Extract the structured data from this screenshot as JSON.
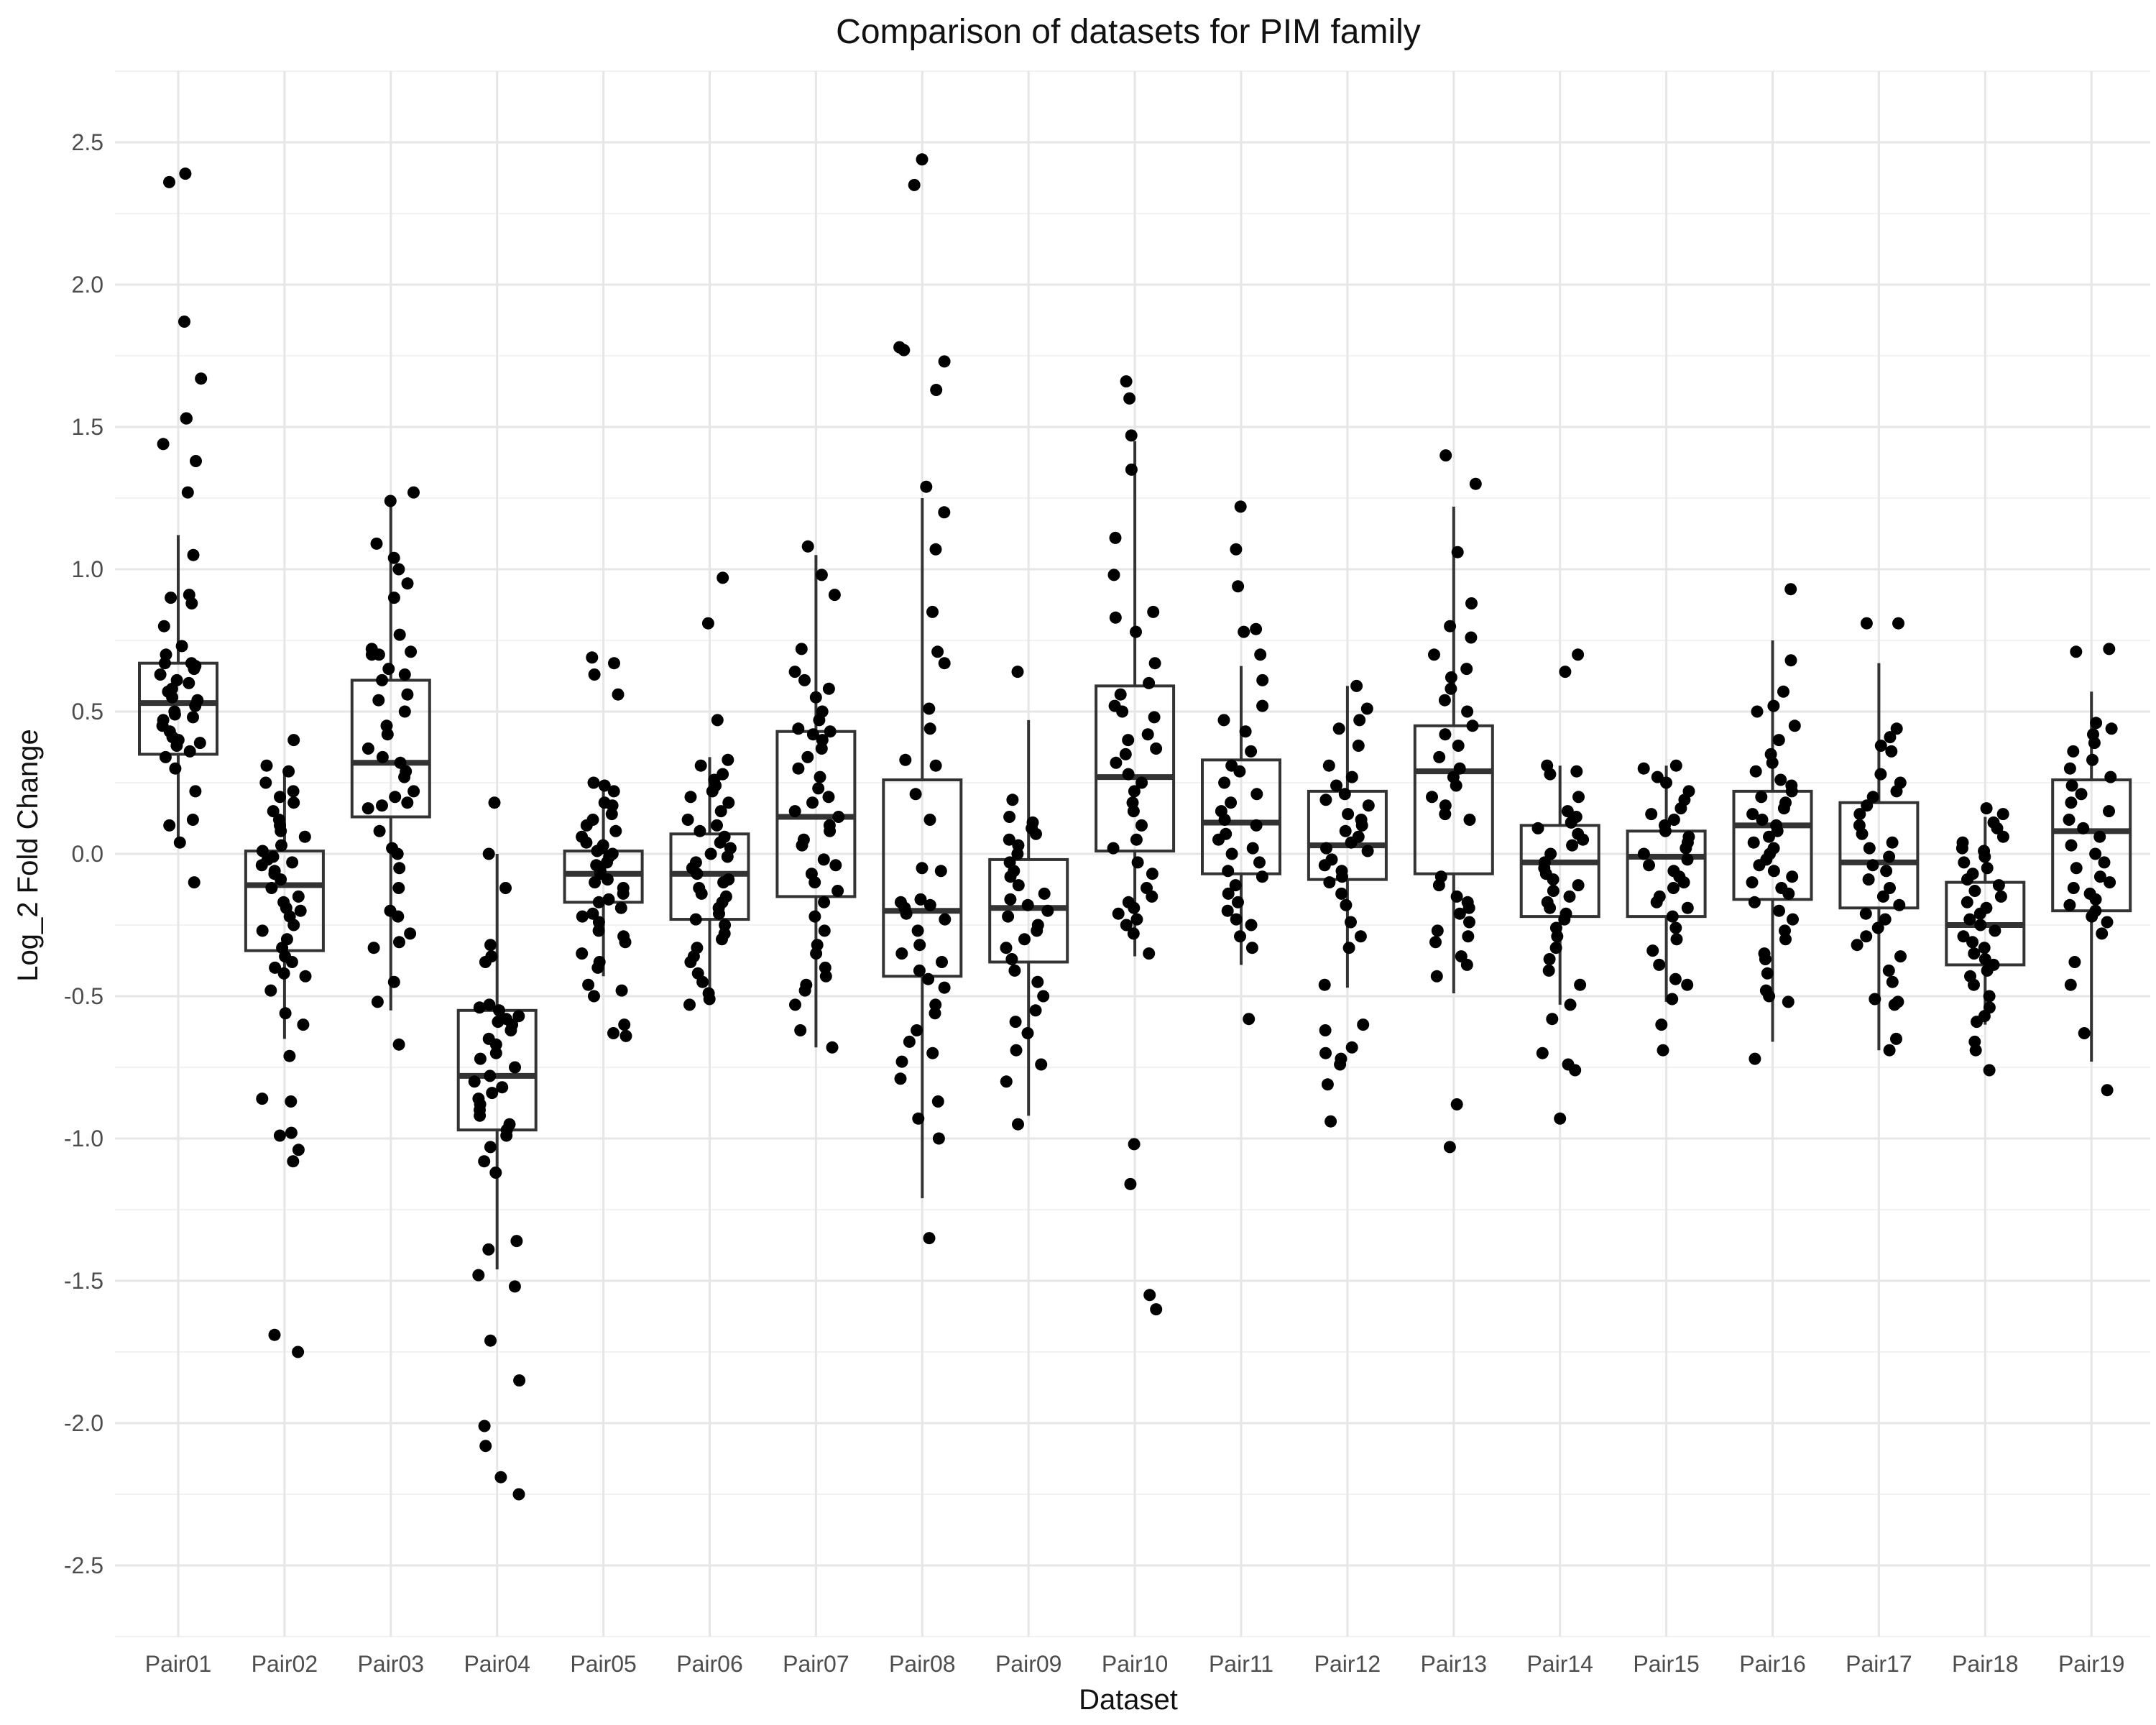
{
  "chart_data": {
    "type": "box",
    "title": "Comparison of datasets for PIM family",
    "xlabel": "Dataset",
    "ylabel": "Log_2 Fold Change",
    "ylim": [
      -2.75,
      2.75
    ],
    "yticks": [
      "-2.5",
      "-2.0",
      "-1.5",
      "-1.0",
      "-0.5",
      "0.0",
      "0.5",
      "1.0",
      "1.5",
      "2.0",
      "2.5"
    ],
    "ytick_values": [
      -2.5,
      -2.0,
      -1.5,
      -1.0,
      -0.5,
      0.0,
      0.5,
      1.0,
      1.5,
      2.0,
      2.5
    ],
    "grid": true,
    "legend": "none",
    "colors": {
      "box": "#333333",
      "point": "#000000",
      "grid": "#e6e6e6"
    },
    "categories": [
      "Pair01",
      "Pair02",
      "Pair03",
      "Pair04",
      "Pair05",
      "Pair06",
      "Pair07",
      "Pair08",
      "Pair09",
      "Pair10",
      "Pair11",
      "Pair12",
      "Pair13",
      "Pair14",
      "Pair15",
      "Pair16",
      "Pair17",
      "Pair18",
      "Pair19"
    ],
    "boxes": [
      {
        "category": "Pair01",
        "q1": 0.35,
        "median": 0.53,
        "q3": 0.67,
        "whisker_low": 0.04,
        "whisker_high": 1.12
      },
      {
        "category": "Pair02",
        "q1": -0.34,
        "median": -0.11,
        "q3": 0.01,
        "whisker_low": -0.65,
        "whisker_high": 0.3
      },
      {
        "category": "Pair03",
        "q1": 0.13,
        "median": 0.32,
        "q3": 0.61,
        "whisker_low": -0.55,
        "whisker_high": 1.24
      },
      {
        "category": "Pair04",
        "q1": -0.97,
        "median": -0.78,
        "q3": -0.55,
        "whisker_low": -1.46,
        "whisker_high": 0.0
      },
      {
        "category": "Pair05",
        "q1": -0.17,
        "median": -0.07,
        "q3": 0.01,
        "whisker_low": -0.43,
        "whisker_high": 0.25
      },
      {
        "category": "Pair06",
        "q1": -0.23,
        "median": -0.07,
        "q3": 0.07,
        "whisker_low": -0.53,
        "whisker_high": 0.34
      },
      {
        "category": "Pair07",
        "q1": -0.15,
        "median": 0.13,
        "q3": 0.43,
        "whisker_low": -0.68,
        "whisker_high": 1.05
      },
      {
        "category": "Pair08",
        "q1": -0.43,
        "median": -0.2,
        "q3": 0.26,
        "whisker_low": -1.21,
        "whisker_high": 1.25
      },
      {
        "category": "Pair09",
        "q1": -0.38,
        "median": -0.19,
        "q3": -0.02,
        "whisker_low": -0.92,
        "whisker_high": 0.47
      },
      {
        "category": "Pair10",
        "q1": 0.01,
        "median": 0.27,
        "q3": 0.59,
        "whisker_low": -0.36,
        "whisker_high": 1.45
      },
      {
        "category": "Pair11",
        "q1": -0.07,
        "median": 0.11,
        "q3": 0.33,
        "whisker_low": -0.39,
        "whisker_high": 0.66
      },
      {
        "category": "Pair12",
        "q1": -0.09,
        "median": 0.03,
        "q3": 0.22,
        "whisker_low": -0.47,
        "whisker_high": 0.59
      },
      {
        "category": "Pair13",
        "q1": -0.07,
        "median": 0.29,
        "q3": 0.45,
        "whisker_low": -0.49,
        "whisker_high": 1.22
      },
      {
        "category": "Pair14",
        "q1": -0.22,
        "median": -0.03,
        "q3": 0.1,
        "whisker_low": -0.53,
        "whisker_high": 0.31
      },
      {
        "category": "Pair15",
        "q1": -0.22,
        "median": -0.01,
        "q3": 0.08,
        "whisker_low": -0.52,
        "whisker_high": 0.31
      },
      {
        "category": "Pair16",
        "q1": -0.16,
        "median": 0.1,
        "q3": 0.22,
        "whisker_low": -0.66,
        "whisker_high": 0.75
      },
      {
        "category": "Pair17",
        "q1": -0.19,
        "median": -0.03,
        "q3": 0.18,
        "whisker_low": -0.69,
        "whisker_high": 0.67
      },
      {
        "category": "Pair18",
        "q1": -0.39,
        "median": -0.25,
        "q3": -0.1,
        "whisker_low": -0.6,
        "whisker_high": 0.13
      },
      {
        "category": "Pair19",
        "q1": -0.2,
        "median": 0.08,
        "q3": 0.26,
        "whisker_low": -0.73,
        "whisker_high": 0.57
      }
    ],
    "points": [
      [
        2.39,
        2.36,
        1.87,
        1.67,
        1.53,
        1.53,
        1.44,
        1.38,
        1.27,
        1.05,
        0.91,
        0.9,
        0.88,
        0.8,
        0.73,
        0.7,
        0.67,
        0.67,
        0.66,
        0.65,
        0.63,
        0.61,
        0.6,
        0.58,
        0.57,
        0.55,
        0.54,
        0.52,
        0.5,
        0.49,
        0.48,
        0.47,
        0.45,
        0.43,
        0.41,
        0.4,
        0.39,
        0.38,
        0.36,
        0.34,
        0.3,
        0.22,
        0.12,
        0.1,
        0.04,
        -0.1
      ],
      [
        0.4,
        0.31,
        0.29,
        0.25,
        0.22,
        0.2,
        0.18,
        0.15,
        0.12,
        0.1,
        0.08,
        0.06,
        0.03,
        0.01,
        -0.01,
        -0.02,
        -0.03,
        -0.04,
        -0.06,
        -0.07,
        -0.09,
        -0.12,
        -0.15,
        -0.17,
        -0.19,
        -0.2,
        -0.22,
        -0.25,
        -0.27,
        -0.3,
        -0.33,
        -0.36,
        -0.38,
        -0.4,
        -0.42,
        -0.43,
        -0.48,
        -0.56,
        -0.6,
        -0.71,
        -0.86,
        -0.87,
        -0.98,
        -0.99,
        -1.04,
        -1.08,
        -1.69,
        -1.75
      ],
      [
        1.27,
        1.24,
        1.09,
        1.04,
        1.0,
        0.95,
        0.9,
        0.77,
        0.72,
        0.71,
        0.7,
        0.7,
        0.65,
        0.63,
        0.61,
        0.56,
        0.54,
        0.5,
        0.45,
        0.42,
        0.37,
        0.34,
        0.32,
        0.29,
        0.27,
        0.22,
        0.2,
        0.18,
        0.17,
        0.16,
        0.08,
        0.02,
        0.0,
        -0.05,
        -0.12,
        -0.2,
        -0.22,
        -0.28,
        -0.31,
        -0.33,
        -0.45,
        -0.52,
        -0.67
      ],
      [
        0.18,
        0.0,
        -0.12,
        -0.32,
        -0.36,
        -0.38,
        -0.53,
        -0.54,
        -0.55,
        -0.57,
        -0.58,
        -0.59,
        -0.6,
        -0.62,
        -0.65,
        -0.67,
        -0.7,
        -0.72,
        -0.75,
        -0.78,
        -0.8,
        -0.82,
        -0.84,
        -0.86,
        -0.88,
        -0.9,
        -0.92,
        -0.95,
        -0.97,
        -0.99,
        -1.03,
        -1.08,
        -1.12,
        -1.36,
        -1.39,
        -1.48,
        -1.52,
        -1.71,
        -1.85,
        -2.01,
        -2.08,
        -2.19,
        -2.25
      ],
      [
        0.69,
        0.67,
        0.63,
        0.56,
        0.25,
        0.24,
        0.22,
        0.18,
        0.17,
        0.14,
        0.12,
        0.1,
        0.08,
        0.06,
        0.04,
        0.03,
        0.02,
        0.01,
        0.0,
        -0.01,
        -0.03,
        -0.04,
        -0.06,
        -0.07,
        -0.09,
        -0.1,
        -0.12,
        -0.14,
        -0.16,
        -0.17,
        -0.19,
        -0.21,
        -0.22,
        -0.24,
        -0.27,
        -0.29,
        -0.31,
        -0.35,
        -0.38,
        -0.4,
        -0.46,
        -0.48,
        -0.5,
        -0.6,
        -0.63,
        -0.64
      ],
      [
        0.97,
        0.81,
        0.47,
        0.33,
        0.31,
        0.28,
        0.26,
        0.24,
        0.22,
        0.2,
        0.18,
        0.15,
        0.12,
        0.1,
        0.08,
        0.06,
        0.04,
        0.02,
        0.0,
        -0.01,
        -0.03,
        -0.05,
        -0.07,
        -0.09,
        -0.1,
        -0.12,
        -0.14,
        -0.15,
        -0.17,
        -0.19,
        -0.21,
        -0.23,
        -0.25,
        -0.28,
        -0.3,
        -0.33,
        -0.36,
        -0.38,
        -0.42,
        -0.45,
        -0.49,
        -0.51,
        -0.53
      ],
      [
        1.08,
        0.98,
        0.91,
        0.72,
        0.64,
        0.61,
        0.58,
        0.55,
        0.5,
        0.47,
        0.44,
        0.43,
        0.42,
        0.4,
        0.37,
        0.34,
        0.3,
        0.27,
        0.23,
        0.2,
        0.18,
        0.15,
        0.13,
        0.1,
        0.08,
        0.05,
        0.03,
        -0.02,
        -0.04,
        -0.07,
        -0.1,
        -0.13,
        -0.17,
        -0.22,
        -0.27,
        -0.32,
        -0.35,
        -0.4,
        -0.43,
        -0.46,
        -0.48,
        -0.53,
        -0.62,
        -0.68
      ],
      [
        2.44,
        2.35,
        1.78,
        1.77,
        1.73,
        1.63,
        1.29,
        1.2,
        1.07,
        0.85,
        0.71,
        0.67,
        0.51,
        0.44,
        0.33,
        0.31,
        0.21,
        0.12,
        -0.05,
        -0.06,
        -0.16,
        -0.17,
        -0.18,
        -0.19,
        -0.21,
        -0.23,
        -0.27,
        -0.32,
        -0.35,
        -0.38,
        -0.41,
        -0.44,
        -0.47,
        -0.53,
        -0.56,
        -0.62,
        -0.66,
        -0.7,
        -0.73,
        -0.79,
        -0.87,
        -0.93,
        -1.0,
        -1.35
      ],
      [
        0.64,
        0.19,
        0.13,
        0.11,
        0.09,
        0.07,
        0.05,
        0.03,
        0.0,
        -0.03,
        -0.06,
        -0.08,
        -0.11,
        -0.14,
        -0.16,
        -0.18,
        -0.2,
        -0.22,
        -0.25,
        -0.27,
        -0.3,
        -0.33,
        -0.37,
        -0.41,
        -0.45,
        -0.5,
        -0.55,
        -0.59,
        -0.63,
        -0.69,
        -0.74,
        -0.8,
        -0.95
      ],
      [
        1.66,
        1.6,
        1.47,
        1.35,
        1.11,
        0.98,
        0.85,
        0.83,
        0.78,
        0.67,
        0.6,
        0.56,
        0.52,
        0.5,
        0.48,
        0.42,
        0.4,
        0.37,
        0.35,
        0.32,
        0.28,
        0.25,
        0.22,
        0.18,
        0.15,
        0.1,
        0.05,
        0.02,
        -0.03,
        -0.07,
        -0.12,
        -0.15,
        -0.17,
        -0.19,
        -0.21,
        -0.23,
        -0.25,
        -0.28,
        -0.35,
        -1.02,
        -1.16,
        -1.55,
        -1.6
      ],
      [
        1.22,
        1.07,
        0.94,
        0.79,
        0.78,
        0.7,
        0.61,
        0.52,
        0.47,
        0.43,
        0.36,
        0.31,
        0.29,
        0.25,
        0.21,
        0.18,
        0.15,
        0.12,
        0.1,
        0.07,
        0.05,
        0.02,
        0.0,
        -0.03,
        -0.06,
        -0.08,
        -0.11,
        -0.14,
        -0.17,
        -0.2,
        -0.23,
        -0.25,
        -0.29,
        -0.33,
        -0.58
      ],
      [
        0.59,
        0.51,
        0.47,
        0.44,
        0.38,
        0.31,
        0.27,
        0.24,
        0.21,
        0.19,
        0.17,
        0.14,
        0.12,
        0.1,
        0.08,
        0.06,
        0.04,
        0.02,
        0.01,
        -0.02,
        -0.04,
        -0.06,
        -0.08,
        -0.1,
        -0.14,
        -0.18,
        -0.24,
        -0.29,
        -0.33,
        -0.46,
        -0.6,
        -0.62,
        -0.68,
        -0.7,
        -0.72,
        -0.74,
        -0.81,
        -0.94
      ],
      [
        1.4,
        1.3,
        1.06,
        0.88,
        0.8,
        0.76,
        0.7,
        0.65,
        0.62,
        0.58,
        0.54,
        0.5,
        0.45,
        0.42,
        0.38,
        0.34,
        0.3,
        0.27,
        0.24,
        0.2,
        0.17,
        0.14,
        0.12,
        -0.08,
        -0.11,
        -0.15,
        -0.17,
        -0.19,
        -0.21,
        -0.24,
        -0.27,
        -0.29,
        -0.31,
        -0.36,
        -0.39,
        -0.43,
        -0.88,
        -1.03
      ],
      [
        0.7,
        0.64,
        0.31,
        0.29,
        0.28,
        0.2,
        0.15,
        0.13,
        0.11,
        0.09,
        0.07,
        0.05,
        0.03,
        0.0,
        -0.03,
        -0.05,
        -0.07,
        -0.09,
        -0.11,
        -0.13,
        -0.15,
        -0.17,
        -0.19,
        -0.21,
        -0.23,
        -0.26,
        -0.29,
        -0.33,
        -0.37,
        -0.41,
        -0.46,
        -0.53,
        -0.58,
        -0.7,
        -0.74,
        -0.76,
        -0.93
      ],
      [
        0.31,
        0.3,
        0.27,
        0.25,
        0.22,
        0.19,
        0.16,
        0.14,
        0.12,
        0.1,
        0.08,
        0.06,
        0.04,
        0.02,
        0.0,
        -0.02,
        -0.04,
        -0.06,
        -0.08,
        -0.1,
        -0.12,
        -0.15,
        -0.17,
        -0.19,
        -0.22,
        -0.26,
        -0.3,
        -0.34,
        -0.39,
        -0.44,
        -0.46,
        -0.51,
        -0.6,
        -0.69
      ],
      [
        0.93,
        0.68,
        0.57,
        0.52,
        0.5,
        0.45,
        0.4,
        0.35,
        0.32,
        0.29,
        0.26,
        0.24,
        0.22,
        0.2,
        0.18,
        0.16,
        0.14,
        0.12,
        0.1,
        0.08,
        0.06,
        0.04,
        0.02,
        0.0,
        -0.02,
        -0.04,
        -0.06,
        -0.08,
        -0.1,
        -0.12,
        -0.14,
        -0.17,
        -0.2,
        -0.23,
        -0.27,
        -0.3,
        -0.35,
        -0.37,
        -0.42,
        -0.48,
        -0.5,
        -0.52,
        -0.72
      ],
      [
        0.81,
        0.81,
        0.44,
        0.41,
        0.38,
        0.36,
        0.28,
        0.25,
        0.22,
        0.2,
        0.17,
        0.14,
        0.1,
        0.07,
        0.04,
        0.02,
        -0.01,
        -0.04,
        -0.06,
        -0.09,
        -0.12,
        -0.15,
        -0.18,
        -0.21,
        -0.23,
        -0.26,
        -0.29,
        -0.32,
        -0.36,
        -0.41,
        -0.45,
        -0.51,
        -0.52,
        -0.53,
        -0.65,
        -0.69
      ],
      [
        0.16,
        0.14,
        0.11,
        0.09,
        0.06,
        0.04,
        0.02,
        0.01,
        -0.01,
        -0.03,
        -0.05,
        -0.07,
        -0.09,
        -0.11,
        -0.13,
        -0.15,
        -0.17,
        -0.19,
        -0.21,
        -0.23,
        -0.25,
        -0.27,
        -0.29,
        -0.31,
        -0.33,
        -0.35,
        -0.37,
        -0.39,
        -0.41,
        -0.43,
        -0.46,
        -0.5,
        -0.54,
        -0.57,
        -0.59,
        -0.66,
        -0.69,
        -0.76
      ],
      [
        0.72,
        0.71,
        0.46,
        0.44,
        0.42,
        0.39,
        0.36,
        0.33,
        0.3,
        0.27,
        0.24,
        0.21,
        0.18,
        0.15,
        0.12,
        0.09,
        0.06,
        0.03,
        0.0,
        -0.03,
        -0.05,
        -0.08,
        -0.1,
        -0.12,
        -0.14,
        -0.16,
        -0.18,
        -0.2,
        -0.22,
        -0.24,
        -0.28,
        -0.38,
        -0.46,
        -0.63,
        -0.83
      ]
    ]
  }
}
